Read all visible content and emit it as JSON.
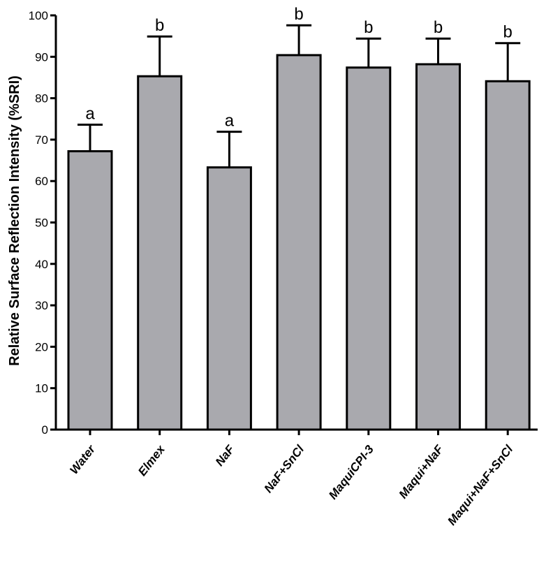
{
  "chart_data": {
    "type": "bar",
    "title": "",
    "xlabel": "",
    "ylabel": "Relative Surface Reflection Intensity (%SRI)",
    "ylim": [
      0,
      100
    ],
    "yticks": [
      0,
      10,
      20,
      30,
      40,
      50,
      60,
      70,
      80,
      90,
      100
    ],
    "ytick_labels": [
      "0",
      "10",
      "20",
      "30",
      "40",
      "50",
      "60",
      "70",
      "80",
      "90",
      "100"
    ],
    "categories": [
      "Water",
      "Elmex",
      "NaF",
      "NaF+SnCl",
      "MaquiCPI-3",
      "Maqui+NaF",
      "Maqui+NaF+SnCl"
    ],
    "values": [
      67.2,
      85.3,
      63.3,
      90.4,
      87.4,
      88.2,
      84.1
    ],
    "error_upper": [
      6.4,
      9.6,
      8.6,
      7.2,
      7.0,
      6.2,
      9.2
    ],
    "significance": [
      "a",
      "b",
      "a",
      "b",
      "b",
      "b",
      "b"
    ],
    "bar_color": "#a9a9ae",
    "grid": false,
    "legend": "none"
  }
}
